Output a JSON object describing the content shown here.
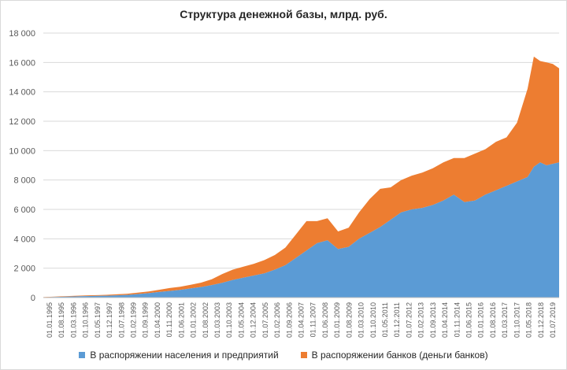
{
  "chart_data": {
    "type": "area",
    "stacked": true,
    "title": "Структура денежной базы, млрд. руб.",
    "xlabel": "",
    "ylabel": "",
    "ylim": [
      0,
      18000
    ],
    "yticks": [
      "0",
      "2 000",
      "4 000",
      "6 000",
      "8 000",
      "10 000",
      "12 000",
      "14 000",
      "16 000",
      "18 000"
    ],
    "grid": true,
    "legend_position": "bottom",
    "x_tick_labels": [
      "01.01.1995",
      "01.08.1995",
      "01.03.1996",
      "01.10.1996",
      "01.05.1997",
      "01.12.1997",
      "01.07.1998",
      "01.02.1999",
      "01.09.1999",
      "01.04.2000",
      "01.11.2000",
      "01.06.2001",
      "01.01.2002",
      "01.08.2002",
      "01.03.2003",
      "01.10.2003",
      "01.05.2004",
      "01.12.2004",
      "01.07.2005",
      "01.02.2006",
      "01.09.2006",
      "01.04.2007",
      "01.11.2007",
      "01.06.2008",
      "01.01.2009",
      "01.08.2009",
      "01.03.2010",
      "01.10.2010",
      "01.05.2011",
      "01.12.2011",
      "01.07.2012",
      "01.02.2013",
      "01.09.2013",
      "01.04.2014",
      "01.11.2014",
      "01.06.2015",
      "01.01.2016",
      "01.08.2016",
      "01.03.2017",
      "01.10.2017",
      "01.05.2018",
      "01.12.2018",
      "01.07.2019"
    ],
    "x": [
      "1995",
      "1996",
      "1997",
      "1998",
      "1999",
      "2000",
      "2000.5",
      "2001",
      "2001.5",
      "2002",
      "2002.5",
      "2003",
      "2003.5",
      "2004",
      "2004.5",
      "2005",
      "2005.5",
      "2006",
      "2006.5",
      "2007",
      "2007.5",
      "2008",
      "2008.5",
      "2009",
      "2009.5",
      "2010",
      "2010.5",
      "2011",
      "2011.5",
      "2012",
      "2012.5",
      "2013",
      "2013.5",
      "2014",
      "2014.5",
      "2015",
      "2015.5",
      "2016",
      "2016.5",
      "2017",
      "2017.5",
      "2018",
      "2018.3",
      "2018.6",
      "2018.9",
      "2019.2",
      "2019.5"
    ],
    "series": [
      {
        "name": "В распоряжении населения и предприятий",
        "color": "#5b9bd5",
        "values": [
          20,
          60,
          100,
          130,
          180,
          300,
          380,
          450,
          520,
          620,
          720,
          850,
          1000,
          1200,
          1350,
          1500,
          1650,
          1900,
          2200,
          2700,
          3200,
          3700,
          3900,
          3300,
          3450,
          4000,
          4400,
          4800,
          5300,
          5800,
          6000,
          6100,
          6300,
          6600,
          7000,
          6500,
          6600,
          7000,
          7300,
          7600,
          7900,
          8200,
          8900,
          9200,
          9000,
          9100,
          9200
        ]
      },
      {
        "name": "В распоряжении банков (деньги банков)",
        "color": "#ed7d31",
        "values": [
          10,
          30,
          50,
          60,
          80,
          120,
          150,
          200,
          220,
          250,
          300,
          400,
          600,
          700,
          750,
          800,
          900,
          1000,
          1200,
          1600,
          2000,
          1500,
          1500,
          1200,
          1300,
          1800,
          2300,
          2600,
          2200,
          2200,
          2300,
          2400,
          2500,
          2600,
          2500,
          3000,
          3200,
          3100,
          3300,
          3300,
          4000,
          6000,
          7500,
          6900,
          7000,
          6800,
          6400
        ]
      }
    ]
  }
}
